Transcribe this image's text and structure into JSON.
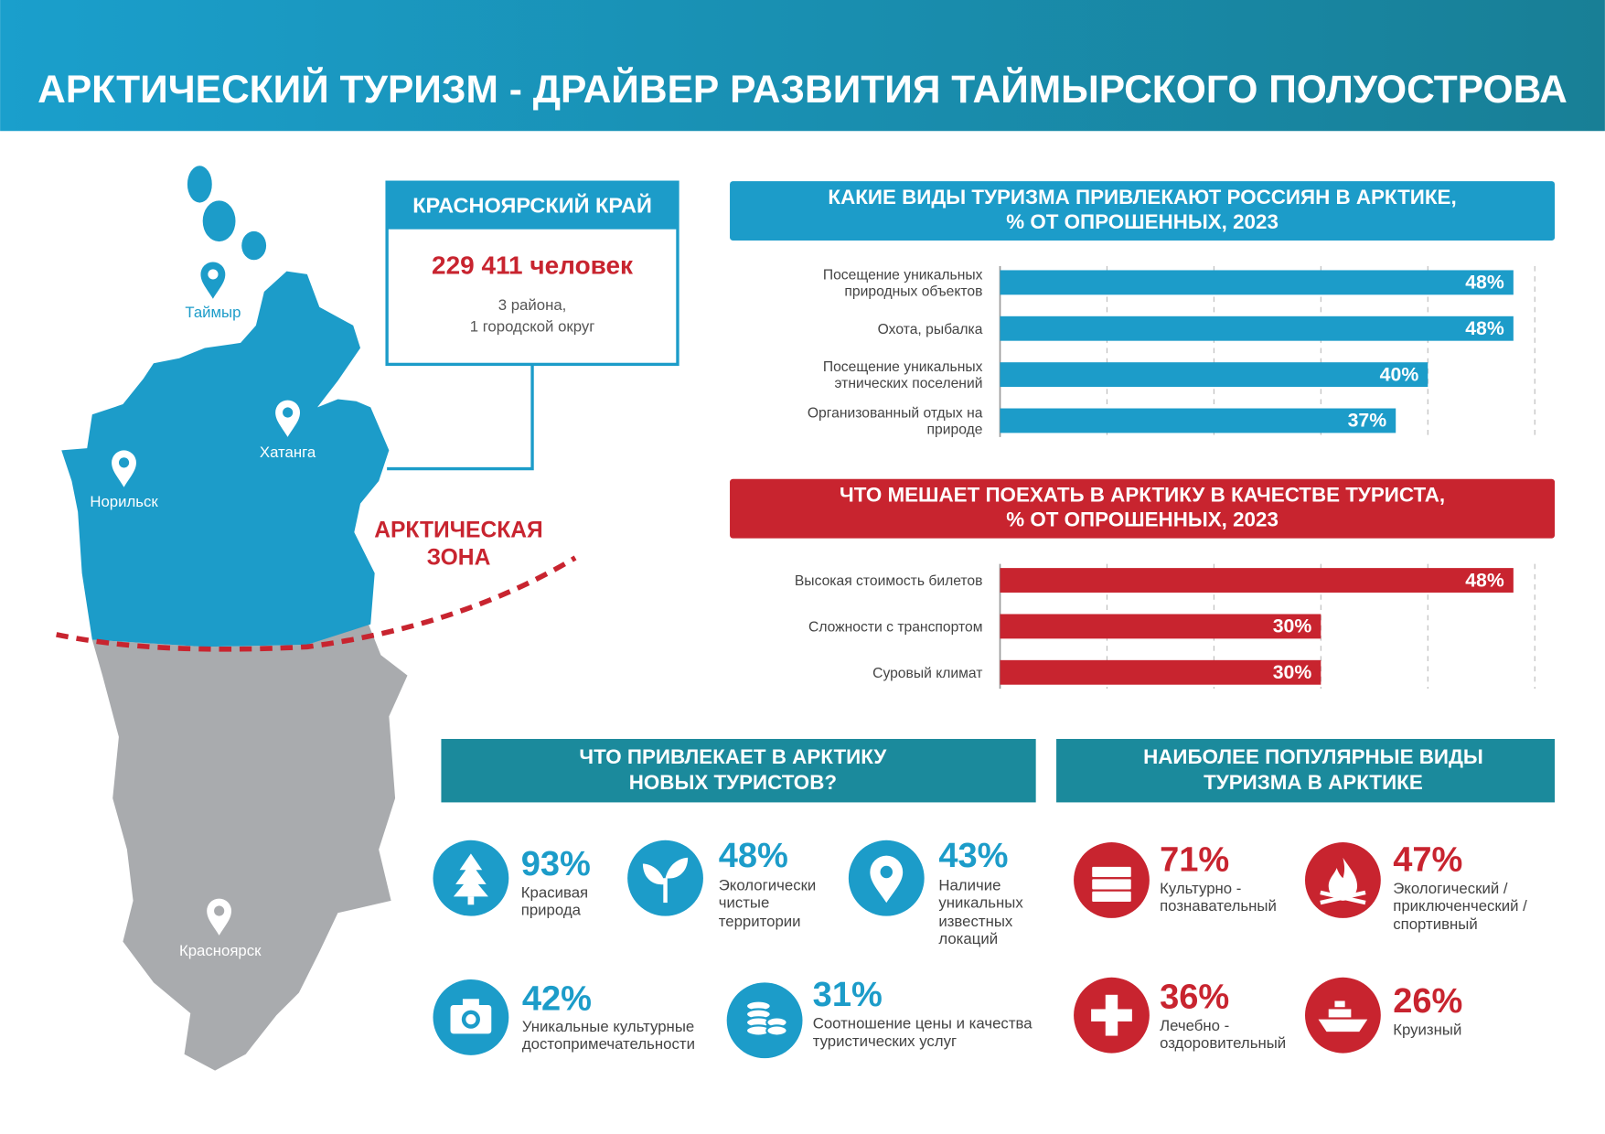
{
  "header": {
    "title": "АРКТИЧЕСКИЙ ТУРИЗМ - ДРАЙВЕР РАЗВИТИЯ ТАЙМЫРСКОГО ПОЛУОСТРОВА"
  },
  "map": {
    "places": [
      "Таймыр",
      "Хатанга",
      "Норильск",
      "Красноярск"
    ],
    "zone_label": [
      "АРКТИЧЕСКАЯ",
      "ЗОНА"
    ]
  },
  "region": {
    "title": "КРАСНОЯРСКИЙ КРАЙ",
    "population": "229 411 человек",
    "note": [
      "3 района,",
      "1 городской округ"
    ]
  },
  "chart_data": [
    {
      "type": "bar",
      "orientation": "horizontal",
      "title": "КАКИЕ ВИДЫ ТУРИЗМА ПРИВЛЕКАЮТ РОССИЯН В АРКТИКЕ,",
      "subtitle": "% ОТ ОПРОШЕННЫХ, 2023",
      "categories": [
        "Посещение уникальных природных объектов",
        "Охота, рыбалка",
        "Посещение уникальных этнических поселений",
        "Организованный отдых на природе"
      ],
      "values": [
        48,
        48,
        40,
        37
      ],
      "value_labels": [
        "48%",
        "48%",
        "40%",
        "37%"
      ],
      "color": "#1c9cc9",
      "xlim": [
        0,
        50
      ],
      "xticks": [
        0,
        10,
        20,
        30,
        40,
        50
      ],
      "grid": true
    },
    {
      "type": "bar",
      "orientation": "horizontal",
      "title": "ЧТО МЕШАЕТ ПОЕХАТЬ В АРКТИКУ В КАЧЕСТВЕ ТУРИСТА,",
      "subtitle": "% ОТ ОПРОШЕННЫХ, 2023",
      "categories": [
        "Высокая стоимость билетов",
        "Сложности с транспортом",
        "Суровый климат"
      ],
      "values": [
        48,
        30,
        30
      ],
      "value_labels": [
        "48%",
        "30%",
        "30%"
      ],
      "color": "#c8242f",
      "xlim": [
        0,
        50
      ],
      "xticks": [
        0,
        10,
        20,
        30,
        40,
        50
      ],
      "grid": true
    }
  ],
  "attract": {
    "title": "ЧТО ПРИВЛЕКАЕТ В АРКТИКУ",
    "subtitle": "НОВЫХ ТУРИСТОВ?",
    "items": [
      {
        "percent": "93%",
        "text": "Красивая природа"
      },
      {
        "percent": "48%",
        "text": "Экологически чистые территории"
      },
      {
        "percent": "43%",
        "text": "Наличие уникальных известных локаций"
      },
      {
        "percent": "42%",
        "text": "Уникальные культурные достопримечательности"
      },
      {
        "percent": "31%",
        "text": "Соотношение цены и качества туристических услуг"
      }
    ]
  },
  "popular": {
    "title": "НАИБОЛЕЕ ПОПУЛЯРНЫЕ ВИДЫ",
    "subtitle": "ТУРИЗМА В АРКТИКЕ",
    "items": [
      {
        "percent": "71%",
        "text": "Культурно - познавательный"
      },
      {
        "percent": "47%",
        "text": "Экологический / приключенческий / спортивный"
      },
      {
        "percent": "36%",
        "text": "Лечебно - оздоровительный"
      },
      {
        "percent": "26%",
        "text": "Круизный"
      }
    ]
  }
}
